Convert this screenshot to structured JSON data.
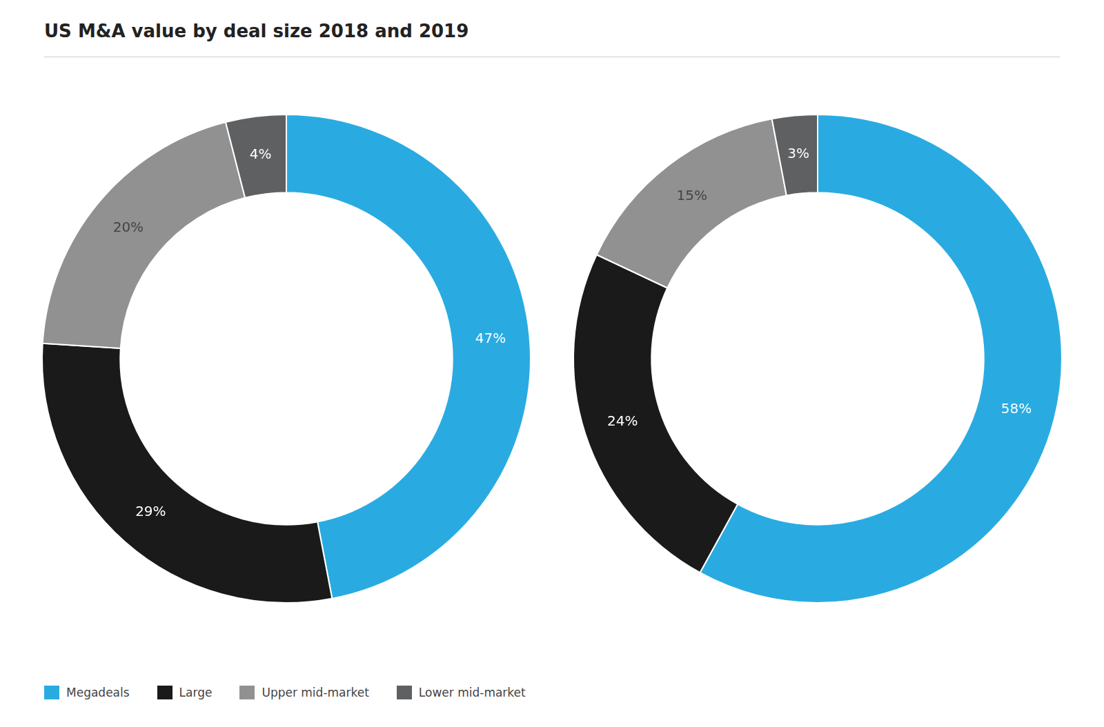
{
  "chart_data": {
    "type": "doughnut",
    "title": "US M&A value by deal size 2018 and 2019",
    "categories": [
      "Megadeals",
      "Large",
      "Upper mid-market",
      "Lower mid-market"
    ],
    "colors": [
      "#29abe2",
      "#1a1a1a",
      "#919191",
      "#5e6062"
    ],
    "series": [
      {
        "values": [
          47,
          29,
          20,
          4
        ],
        "value_labels": [
          "47%",
          "29%",
          "20%",
          "4%"
        ]
      },
      {
        "values": [
          58,
          24,
          15,
          3
        ],
        "value_labels": [
          "58%",
          "24%",
          "15%",
          "3%"
        ]
      }
    ],
    "data_labels": true,
    "legend": "bottom"
  }
}
